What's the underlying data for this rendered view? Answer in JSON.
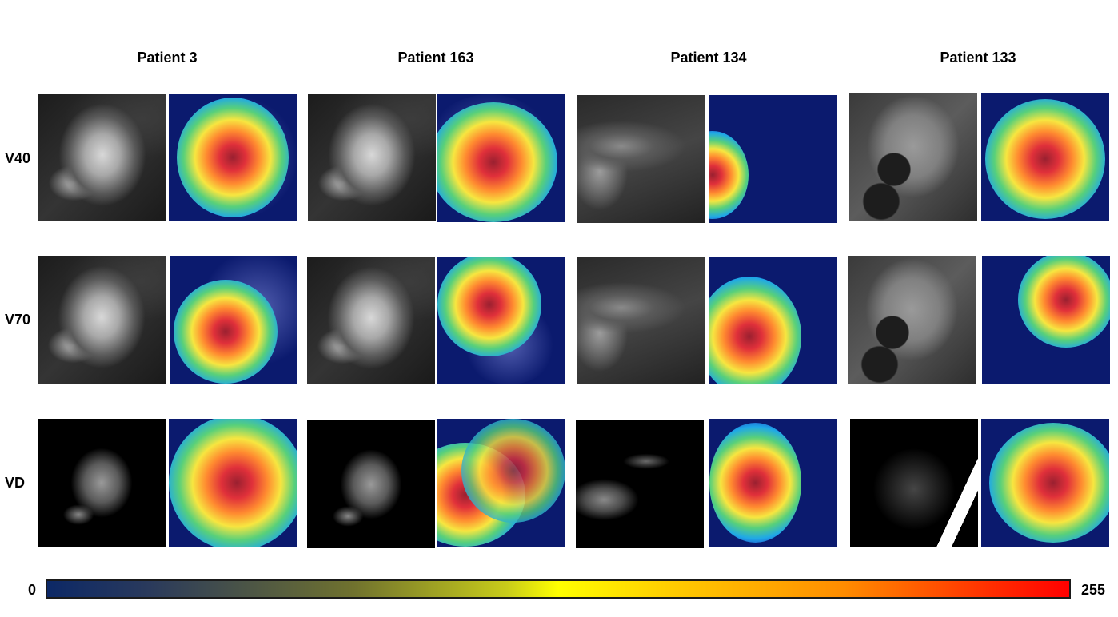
{
  "columns": [
    "Patient 3",
    "Patient 163",
    "Patient 134",
    "Patient 133"
  ],
  "rows": [
    "V40",
    "V70",
    "VD"
  ],
  "colorbar": {
    "min_label": "0",
    "max_label": "255",
    "colormap": [
      "#0c2866",
      "#70722e",
      "#ffff00",
      "#ff8c00",
      "#ff0000"
    ]
  }
}
